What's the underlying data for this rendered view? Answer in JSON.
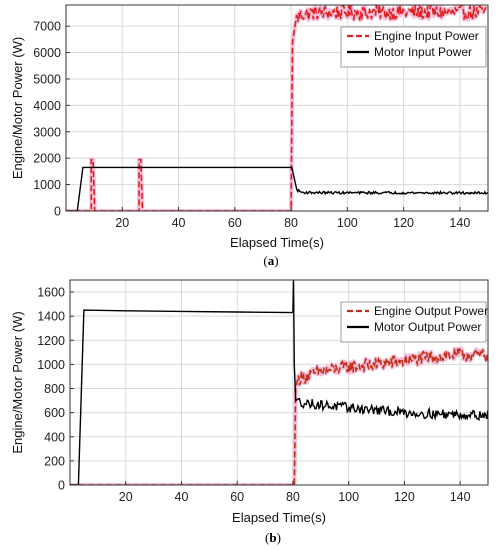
{
  "chart_data": [
    {
      "type": "line",
      "caption_prefix": "(",
      "caption_letter": "a",
      "caption_suffix": ")",
      "ylabel": "Engine/Motor   Power (W)",
      "xlabel": "Elapsed Time(s)",
      "xlim": [
        0,
        150
      ],
      "ylim": [
        0,
        7800
      ],
      "xticks": [
        "20",
        "40",
        "60",
        "80",
        "100",
        "120",
        "140"
      ],
      "xtick_values": [
        20,
        40,
        60,
        80,
        100,
        120,
        140
      ],
      "yticks": [
        "0",
        "1000",
        "2000",
        "3000",
        "4000",
        "5000",
        "6000",
        "7000"
      ],
      "ytick_values": [
        0,
        1000,
        2000,
        3000,
        4000,
        5000,
        6000,
        7000
      ],
      "grid": true,
      "legend_position": "top-right",
      "colors": {
        "engine": "#e02020",
        "engine_glow": "#f4a6c9",
        "motor": "#000000"
      },
      "series": [
        {
          "name": "Engine Input Power",
          "style": "dashed",
          "color": "#e02020",
          "points": [
            [
              0,
              0
            ],
            [
              9,
              0
            ],
            [
              9,
              1950
            ],
            [
              9.6,
              1950
            ],
            [
              10.2,
              0
            ],
            [
              26,
              0
            ],
            [
              26,
              1950
            ],
            [
              26.6,
              1950
            ],
            [
              27.2,
              0
            ],
            [
              80,
              0
            ],
            [
              80.5,
              6400
            ],
            [
              82,
              7300
            ],
            [
              84,
              7450
            ],
            [
              88,
              7500
            ],
            [
              100,
              7520
            ],
            [
              120,
              7520
            ],
            [
              150,
              7520
            ]
          ],
          "noise_from": 82,
          "noise_amp": 280
        },
        {
          "name": "Motor Input Power",
          "style": "solid",
          "color": "#000000",
          "points": [
            [
              0,
              0
            ],
            [
              2,
              0
            ],
            [
              2,
              0
            ],
            [
              4,
              0
            ],
            [
              6,
              1650
            ],
            [
              20,
              1650
            ],
            [
              40,
              1650
            ],
            [
              60,
              1650
            ],
            [
              80,
              1650
            ],
            [
              80.3,
              1650
            ],
            [
              82,
              800
            ],
            [
              84,
              700
            ],
            [
              100,
              690
            ],
            [
              120,
              690
            ],
            [
              150,
              680
            ]
          ],
          "noise_from": 82,
          "noise_amp": 45
        }
      ]
    },
    {
      "type": "line",
      "caption_prefix": "(",
      "caption_letter": "b",
      "caption_suffix": ")",
      "ylabel": "Engine/Motor   Power (W)",
      "xlabel": "Elapsed Time(s)",
      "xlim": [
        0,
        150
      ],
      "ylim": [
        0,
        1700
      ],
      "xticks": [
        "20",
        "40",
        "60",
        "80",
        "100",
        "120",
        "140"
      ],
      "xtick_values": [
        20,
        40,
        60,
        80,
        100,
        120,
        140
      ],
      "yticks": [
        "0",
        "200",
        "400",
        "600",
        "800",
        "1000",
        "1200",
        "1400",
        "1600"
      ],
      "ytick_values": [
        0,
        200,
        400,
        600,
        800,
        1000,
        1200,
        1400,
        1600
      ],
      "grid": true,
      "legend_position": "top-right",
      "colors": {
        "engine": "#c0301a",
        "engine_glow": "#f4a6c9",
        "motor": "#000000"
      },
      "series": [
        {
          "name": "Engine Output Power",
          "style": "dashed",
          "color": "#c0301a",
          "points": [
            [
              0,
              0
            ],
            [
              80,
              0
            ],
            [
              80.5,
              0
            ],
            [
              81,
              800
            ],
            [
              82,
              880
            ],
            [
              90,
              940
            ],
            [
              100,
              980
            ],
            [
              110,
              1000
            ],
            [
              120,
              1030
            ],
            [
              130,
              1060
            ],
            [
              140,
              1080
            ],
            [
              150,
              1075
            ]
          ],
          "noise_from": 82,
          "noise_amp": 55
        },
        {
          "name": "Motor Output Power",
          "style": "solid",
          "color": "#000000",
          "points": [
            [
              0,
              0
            ],
            [
              3,
              0
            ],
            [
              5,
              1450
            ],
            [
              20,
              1445
            ],
            [
              40,
              1440
            ],
            [
              60,
              1435
            ],
            [
              80,
              1430
            ],
            [
              80.2,
              1700
            ],
            [
              80.5,
              1000
            ],
            [
              81,
              700
            ],
            [
              84,
              680
            ],
            [
              100,
              640
            ],
            [
              110,
              620
            ],
            [
              120,
              600
            ],
            [
              130,
              590
            ],
            [
              150,
              580
            ]
          ],
          "noise_from": 82,
          "noise_amp": 40
        }
      ]
    }
  ]
}
